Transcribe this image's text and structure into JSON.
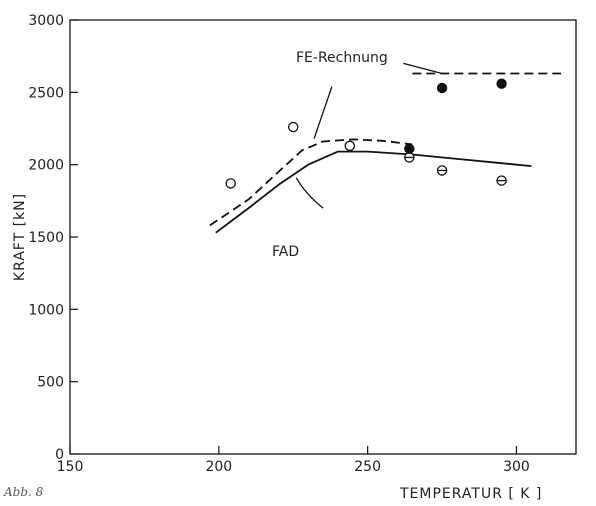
{
  "chart_data": {
    "type": "line",
    "title": "",
    "xlabel": "TEMPERATUR   [ K ]",
    "ylabel": "KRAFT  [kN]",
    "xlim": [
      150,
      320
    ],
    "ylim": [
      0,
      3000
    ],
    "x_ticks": [
      150,
      200,
      250,
      300
    ],
    "y_ticks": [
      0,
      500,
      1000,
      1500,
      2000,
      2500,
      3000
    ],
    "grid": false,
    "series": [
      {
        "name": "FAD",
        "style": "solid",
        "x": [
          199,
          210,
          220,
          230,
          240,
          250,
          265,
          280,
          295,
          305
        ],
        "y": [
          1530,
          1700,
          1860,
          2000,
          2090,
          2090,
          2070,
          2040,
          2010,
          1990
        ]
      },
      {
        "name": "FE-Rechnung",
        "style": "dashed",
        "x": [
          197,
          210,
          220,
          228,
          235,
          245,
          255,
          265
        ],
        "y": [
          1580,
          1760,
          1950,
          2100,
          2160,
          2175,
          2165,
          2140
        ]
      },
      {
        "name": "FE-Rechnung",
        "style": "dashed",
        "x": [
          265,
          315
        ],
        "y": [
          2630,
          2630
        ]
      }
    ],
    "points": [
      {
        "marker": "open",
        "x": 204,
        "y": 1870
      },
      {
        "marker": "open",
        "x": 225,
        "y": 2260
      },
      {
        "marker": "open",
        "x": 244,
        "y": 2130
      },
      {
        "marker": "half",
        "x": 264,
        "y": 2050
      },
      {
        "marker": "half",
        "x": 275,
        "y": 1960
      },
      {
        "marker": "half",
        "x": 295,
        "y": 1890
      },
      {
        "marker": "filled",
        "x": 264,
        "y": 2110
      },
      {
        "marker": "filled",
        "x": 275,
        "y": 2530
      },
      {
        "marker": "filled",
        "x": 295,
        "y": 2560
      }
    ],
    "annotations": [
      {
        "text": "FE-Rechnung",
        "target": "FE-Rechnung"
      },
      {
        "text": "FAD",
        "target": "FAD"
      }
    ]
  },
  "corner_text": "Abb. 8"
}
